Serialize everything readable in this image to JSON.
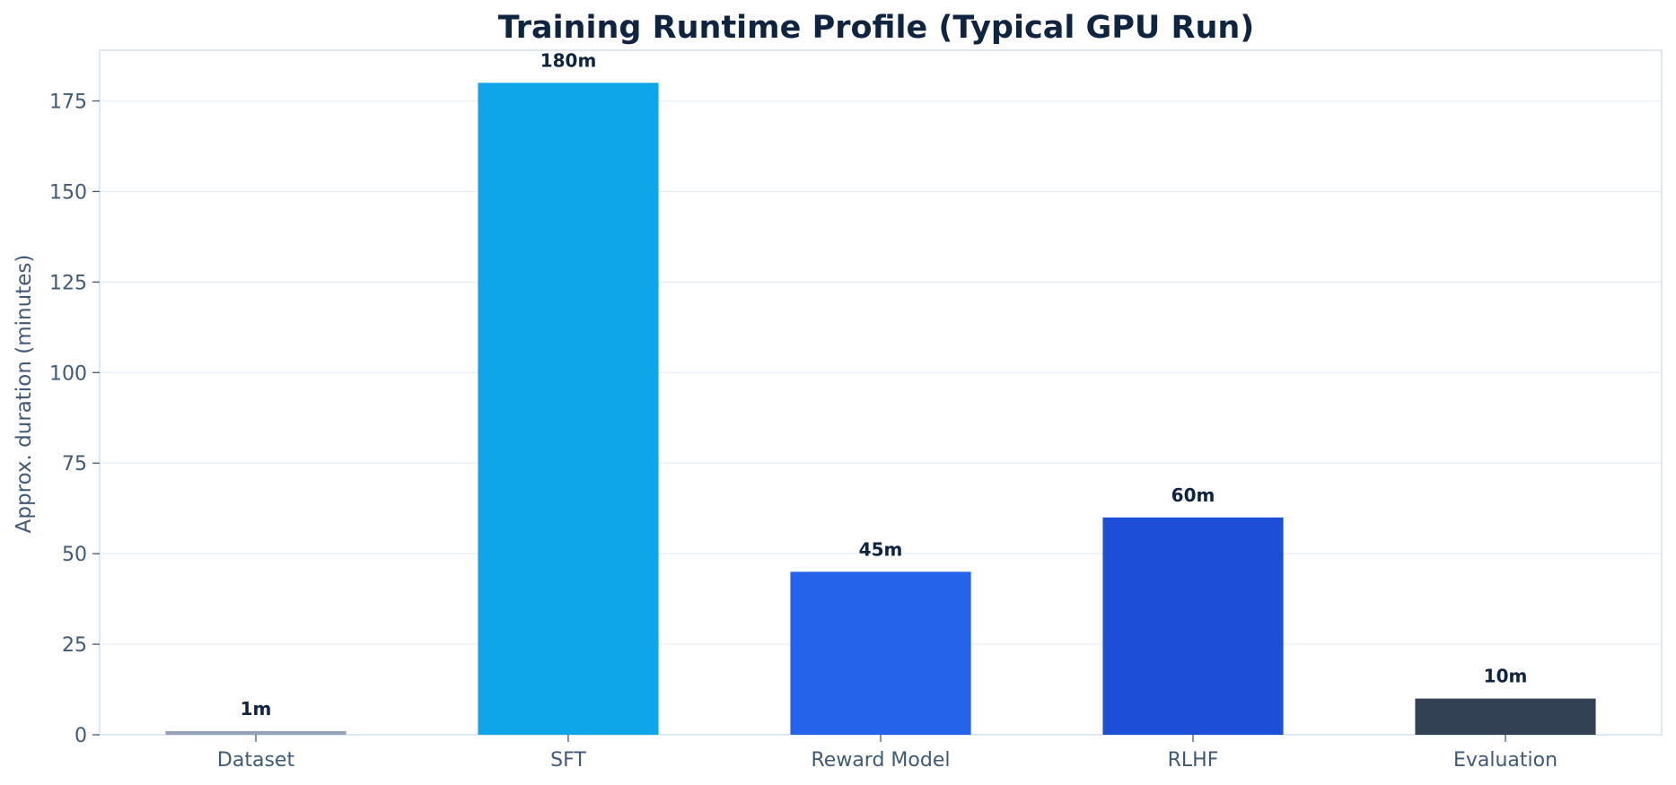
{
  "chart_data": {
    "type": "bar",
    "title": "Training Runtime Profile (Typical GPU Run)",
    "xlabel": "",
    "ylabel": "Approx. duration (minutes)",
    "categories": [
      "Dataset",
      "SFT",
      "Reward Model",
      "RLHF",
      "Evaluation"
    ],
    "values": [
      1,
      180,
      45,
      60,
      10
    ],
    "data_labels": [
      "1m",
      "180m",
      "45m",
      "60m",
      "10m"
    ],
    "ylim": [
      0,
      189
    ],
    "yticks": [
      0,
      25,
      50,
      75,
      100,
      125,
      150,
      175
    ],
    "grid": "horizontal",
    "legend": "none",
    "colors": [
      "#94a3b8",
      "#0ea5e9",
      "#2563eb",
      "#1d4ed8",
      "#334155"
    ],
    "axis_color": "#d6e2ee",
    "grid_color": "#e6edf4",
    "label_color": "#0f2440",
    "tick_color": "#3f5a78"
  }
}
